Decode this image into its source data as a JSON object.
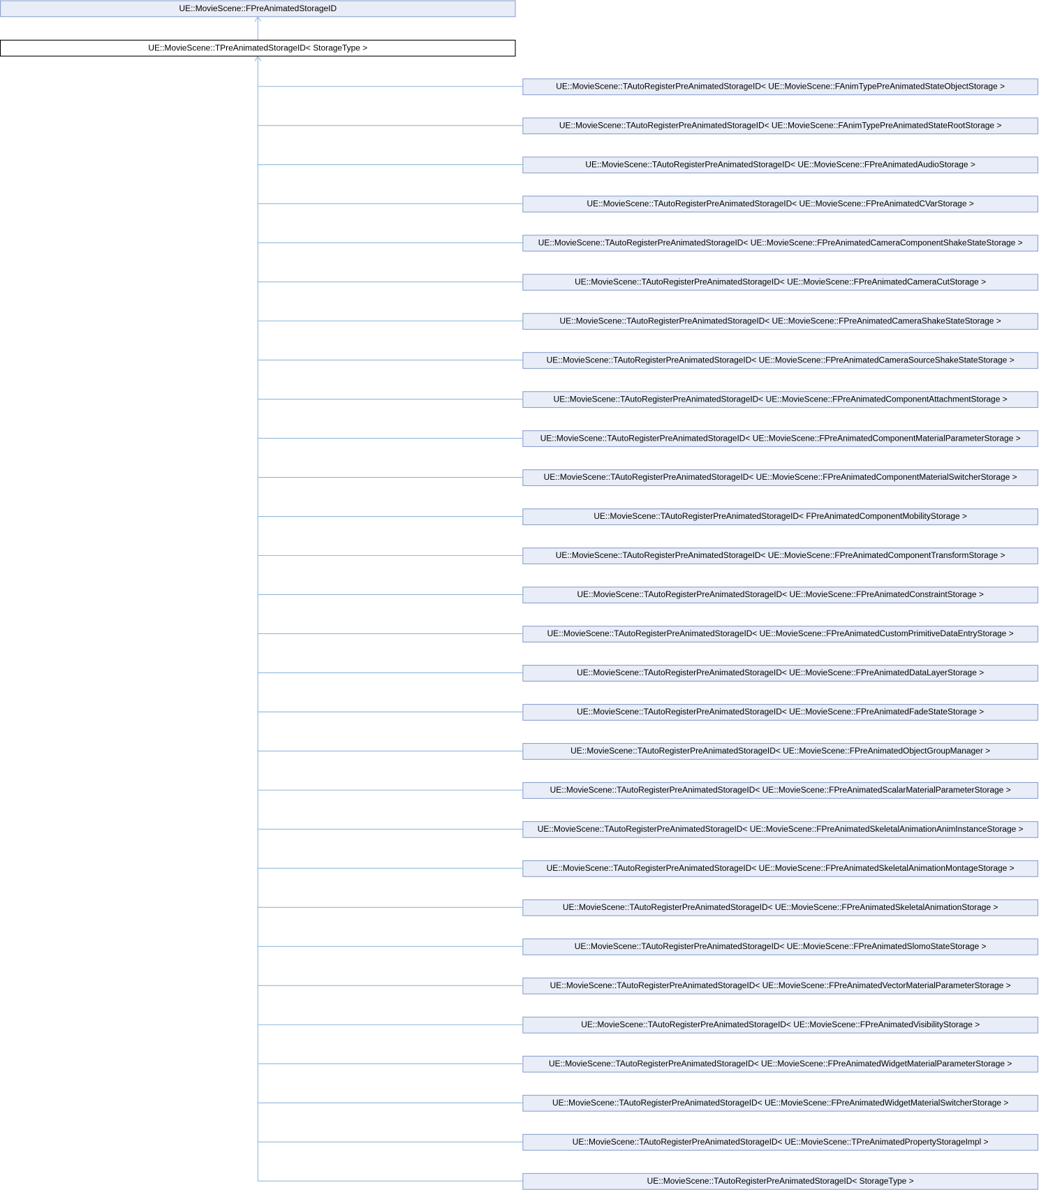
{
  "nodes": [
    {
      "label": "UE::MovieScene::FPreAnimatedStorageID"
    },
    {
      "label": "UE::MovieScene::TPreAnimatedStorageID< StorageType >"
    },
    {
      "label": "UE::MovieScene::TAutoRegisterPreAnimatedStorageID< UE::MovieScene::FAnimTypePreAnimatedStateObjectStorage >"
    },
    {
      "label": "UE::MovieScene::TAutoRegisterPreAnimatedStorageID< UE::MovieScene::FAnimTypePreAnimatedStateRootStorage >"
    },
    {
      "label": "UE::MovieScene::TAutoRegisterPreAnimatedStorageID< UE::MovieScene::FPreAnimatedAudioStorage >"
    },
    {
      "label": "UE::MovieScene::TAutoRegisterPreAnimatedStorageID< UE::MovieScene::FPreAnimatedCVarStorage >"
    },
    {
      "label": "UE::MovieScene::TAutoRegisterPreAnimatedStorageID< UE::MovieScene::FPreAnimatedCameraComponentShakeStateStorage >"
    },
    {
      "label": "UE::MovieScene::TAutoRegisterPreAnimatedStorageID< UE::MovieScene::FPreAnimatedCameraCutStorage >"
    },
    {
      "label": "UE::MovieScene::TAutoRegisterPreAnimatedStorageID< UE::MovieScene::FPreAnimatedCameraShakeStateStorage >"
    },
    {
      "label": "UE::MovieScene::TAutoRegisterPreAnimatedStorageID< UE::MovieScene::FPreAnimatedCameraSourceShakeStateStorage >"
    },
    {
      "label": "UE::MovieScene::TAutoRegisterPreAnimatedStorageID< UE::MovieScene::FPreAnimatedComponentAttachmentStorage >"
    },
    {
      "label": "UE::MovieScene::TAutoRegisterPreAnimatedStorageID< UE::MovieScene::FPreAnimatedComponentMaterialParameterStorage >"
    },
    {
      "label": "UE::MovieScene::TAutoRegisterPreAnimatedStorageID< UE::MovieScene::FPreAnimatedComponentMaterialSwitcherStorage >"
    },
    {
      "label": "UE::MovieScene::TAutoRegisterPreAnimatedStorageID< FPreAnimatedComponentMobilityStorage >"
    },
    {
      "label": "UE::MovieScene::TAutoRegisterPreAnimatedStorageID< UE::MovieScene::FPreAnimatedComponentTransformStorage >"
    },
    {
      "label": "UE::MovieScene::TAutoRegisterPreAnimatedStorageID< UE::MovieScene::FPreAnimatedConstraintStorage >"
    },
    {
      "label": "UE::MovieScene::TAutoRegisterPreAnimatedStorageID< UE::MovieScene::FPreAnimatedCustomPrimitiveDataEntryStorage >"
    },
    {
      "label": "UE::MovieScene::TAutoRegisterPreAnimatedStorageID< UE::MovieScene::FPreAnimatedDataLayerStorage >"
    },
    {
      "label": "UE::MovieScene::TAutoRegisterPreAnimatedStorageID< UE::MovieScene::FPreAnimatedFadeStateStorage >"
    },
    {
      "label": "UE::MovieScene::TAutoRegisterPreAnimatedStorageID< UE::MovieScene::FPreAnimatedObjectGroupManager >"
    },
    {
      "label": "UE::MovieScene::TAutoRegisterPreAnimatedStorageID< UE::MovieScene::FPreAnimatedScalarMaterialParameterStorage >"
    },
    {
      "label": "UE::MovieScene::TAutoRegisterPreAnimatedStorageID< UE::MovieScene::FPreAnimatedSkeletalAnimationAnimInstanceStorage >"
    },
    {
      "label": "UE::MovieScene::TAutoRegisterPreAnimatedStorageID< UE::MovieScene::FPreAnimatedSkeletalAnimationMontageStorage >"
    },
    {
      "label": "UE::MovieScene::TAutoRegisterPreAnimatedStorageID< UE::MovieScene::FPreAnimatedSkeletalAnimationStorage >"
    },
    {
      "label": "UE::MovieScene::TAutoRegisterPreAnimatedStorageID< UE::MovieScene::FPreAnimatedSlomoStateStorage >"
    },
    {
      "label": "UE::MovieScene::TAutoRegisterPreAnimatedStorageID< UE::MovieScene::FPreAnimatedVectorMaterialParameterStorage >"
    },
    {
      "label": "UE::MovieScene::TAutoRegisterPreAnimatedStorageID< UE::MovieScene::FPreAnimatedVisibilityStorage >"
    },
    {
      "label": "UE::MovieScene::TAutoRegisterPreAnimatedStorageID< UE::MovieScene::FPreAnimatedWidgetMaterialParameterStorage >"
    },
    {
      "label": "UE::MovieScene::TAutoRegisterPreAnimatedStorageID< UE::MovieScene::FPreAnimatedWidgetMaterialSwitcherStorage >"
    },
    {
      "label": "UE::MovieScene::TAutoRegisterPreAnimatedStorageID< UE::MovieScene::TPreAnimatedPropertyStorageImpl >"
    },
    {
      "label": "UE::MovieScene::TAutoRegisterPreAnimatedStorageID< StorageType >"
    }
  ]
}
